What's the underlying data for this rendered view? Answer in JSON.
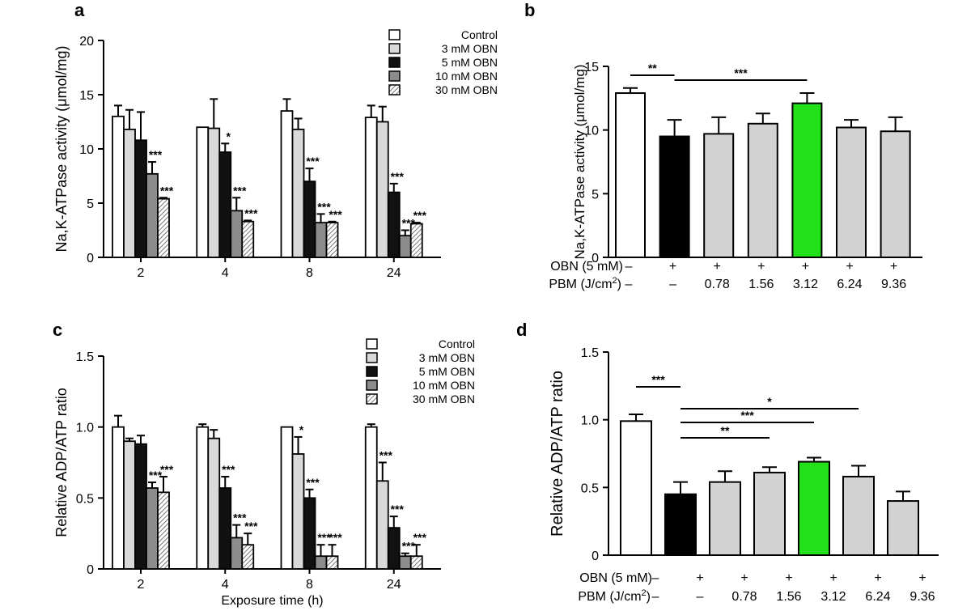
{
  "chart_data": [
    {
      "panel": "a",
      "type": "bar",
      "ylabel": "Na,K-ATPase activity (μmol/mg)",
      "xlabel": "",
      "ylim": [
        0,
        20
      ],
      "yticks": [
        0,
        5,
        10,
        15,
        20
      ],
      "categories": [
        "2",
        "4",
        "8",
        "24"
      ],
      "series": [
        {
          "name": "Control",
          "values": [
            13.0,
            12.0,
            13.5,
            12.9
          ],
          "errors": [
            1.0,
            0,
            1.1,
            1.1
          ]
        },
        {
          "name": "3 mM OBN",
          "values": [
            11.8,
            11.9,
            11.8,
            12.5
          ],
          "errors": [
            1.8,
            2.7,
            1.0,
            1.4
          ]
        },
        {
          "name": "5 mM OBN",
          "values": [
            10.8,
            9.7,
            7.0,
            6.0
          ],
          "errors": [
            2.6,
            0.8,
            1.2,
            0.8
          ]
        },
        {
          "name": "10 mM OBN",
          "values": [
            7.7,
            4.3,
            3.2,
            2.0
          ],
          "errors": [
            1.1,
            1.2,
            0.8,
            0.5
          ]
        },
        {
          "name": "30 mM OBN",
          "values": [
            5.4,
            3.3,
            3.2,
            3.1
          ],
          "errors": [
            0.1,
            0.1,
            0.1,
            0.1
          ]
        }
      ],
      "annotations": [
        [
          "",
          "",
          "",
          "***",
          "***"
        ],
        [
          "",
          "",
          "*",
          "***",
          "***"
        ],
        [
          "",
          "",
          "***",
          "***",
          "***"
        ],
        [
          "",
          "",
          "***",
          "***",
          "***"
        ]
      ]
    },
    {
      "panel": "b",
      "type": "bar",
      "ylabel": "Na,K-ATPase activity (μmol/mg)",
      "ylim": [
        0,
        15
      ],
      "yticks": [
        0,
        5,
        10,
        15
      ],
      "row1_label": "OBN (5 mM)",
      "row2_label": "PBM (J/cm",
      "row2_sup": "2",
      "row2_end": ")",
      "obn": [
        "–",
        "+",
        "+",
        "+",
        "+",
        "+",
        "+"
      ],
      "pbm": [
        "–",
        "–",
        "0.78",
        "1.56",
        "3.12",
        "6.24",
        "9.36"
      ],
      "values": [
        12.9,
        9.5,
        9.7,
        10.5,
        12.1,
        10.2,
        9.9
      ],
      "errors": [
        0.4,
        1.3,
        1.3,
        0.8,
        0.8,
        0.6,
        1.1
      ],
      "colors": [
        "#ffffff",
        "#000000",
        "#d3d3d3",
        "#d3d3d3",
        "#22e01a",
        "#d3d3d3",
        "#d3d3d3"
      ],
      "brackets": [
        {
          "from": 0,
          "to": 1,
          "label": "**"
        },
        {
          "from": 1,
          "to": 4,
          "label": "***"
        }
      ]
    },
    {
      "panel": "c",
      "type": "bar",
      "ylabel": "Relative ADP/ATP ratio",
      "xlabel": "Exposure time (h)",
      "ylim": [
        0,
        1.5
      ],
      "yticks": [
        "0",
        "0.5",
        "1.0",
        "1.5"
      ],
      "categories": [
        "2",
        "4",
        "8",
        "24"
      ],
      "series": [
        {
          "name": "Control",
          "values": [
            1.0,
            1.0,
            1.0,
            1.0
          ],
          "errors": [
            0.08,
            0.02,
            0,
            0.02
          ]
        },
        {
          "name": "3 mM OBN",
          "values": [
            0.9,
            0.92,
            0.81,
            0.62
          ],
          "errors": [
            0.02,
            0.06,
            0.12,
            0.13
          ]
        },
        {
          "name": "5 mM OBN",
          "values": [
            0.88,
            0.57,
            0.5,
            0.29
          ],
          "errors": [
            0.06,
            0.08,
            0.06,
            0.08
          ]
        },
        {
          "name": "10 mM OBN",
          "values": [
            0.57,
            0.22,
            0.09,
            0.09
          ],
          "errors": [
            0.04,
            0.09,
            0.08,
            0.02
          ]
        },
        {
          "name": "30 mM OBN",
          "values": [
            0.54,
            0.17,
            0.09,
            0.09
          ],
          "errors": [
            0.11,
            0.08,
            0.08,
            0.08
          ]
        }
      ],
      "annotations": [
        [
          "",
          "",
          "",
          "***",
          "***"
        ],
        [
          "",
          "",
          "***",
          "***",
          "***"
        ],
        [
          "",
          "*",
          "***",
          "***",
          "***"
        ],
        [
          "",
          "***",
          "***",
          "***",
          "***"
        ]
      ]
    },
    {
      "panel": "d",
      "type": "bar",
      "ylabel": "Relative ADP/ATP ratio",
      "ylim": [
        0,
        1.5
      ],
      "yticks": [
        "0",
        "0.5",
        "1.0",
        "1.5"
      ],
      "row1_label": "OBN (5 mM)",
      "row2_label": "PBM (J/cm",
      "row2_sup": "2",
      "row2_end": ")",
      "obn": [
        "–",
        "+",
        "+",
        "+",
        "+",
        "+",
        "+"
      ],
      "pbm": [
        "–",
        "–",
        "0.78",
        "1.56",
        "3.12",
        "6.24",
        "9.36"
      ],
      "values": [
        0.99,
        0.45,
        0.54,
        0.61,
        0.69,
        0.58,
        0.4
      ],
      "errors": [
        0.05,
        0.09,
        0.08,
        0.04,
        0.03,
        0.08,
        0.07
      ],
      "colors": [
        "#ffffff",
        "#000000",
        "#d3d3d3",
        "#d3d3d3",
        "#22e01a",
        "#d3d3d3",
        "#d3d3d3"
      ],
      "brackets": [
        {
          "from": 0,
          "to": 1,
          "label": "***"
        },
        {
          "from": 1,
          "to": 5,
          "label": "*"
        },
        {
          "from": 1,
          "to": 4,
          "label": "***"
        },
        {
          "from": 1,
          "to": 3,
          "label": "**"
        }
      ]
    }
  ]
}
